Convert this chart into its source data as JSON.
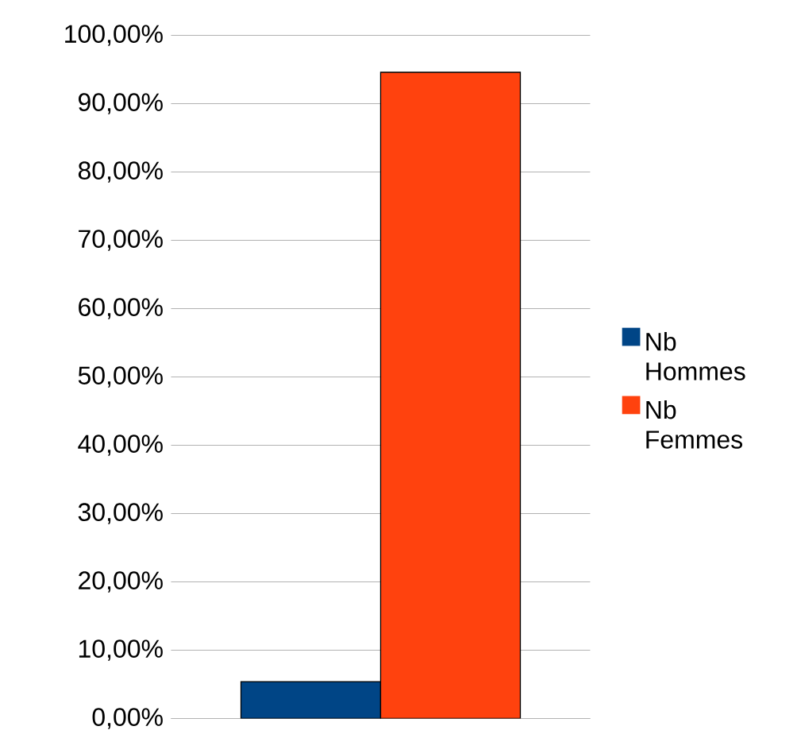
{
  "chart_data": {
    "type": "bar",
    "categories": [
      null
    ],
    "series": [
      {
        "name": "Nb Hommes",
        "color": "#004586",
        "values": [
          5.4
        ]
      },
      {
        "name": "Nb Femmes",
        "color": "#ff420e",
        "values": [
          94.6
        ]
      }
    ],
    "ylim": [
      0,
      100
    ],
    "yticks": [
      {
        "value": 0,
        "label": "0,00%"
      },
      {
        "value": 10,
        "label": "10,00%"
      },
      {
        "value": 20,
        "label": "20,00%"
      },
      {
        "value": 30,
        "label": "30,00%"
      },
      {
        "value": 40,
        "label": "40,00%"
      },
      {
        "value": 50,
        "label": "50,00%"
      },
      {
        "value": 60,
        "label": "60,00%"
      },
      {
        "value": 70,
        "label": "70,00%"
      },
      {
        "value": 80,
        "label": "80,00%"
      },
      {
        "value": 90,
        "label": "90,00%"
      },
      {
        "value": 100,
        "label": "100,00%"
      }
    ],
    "grid": "y",
    "legend": "right",
    "tick_labels": "y"
  }
}
